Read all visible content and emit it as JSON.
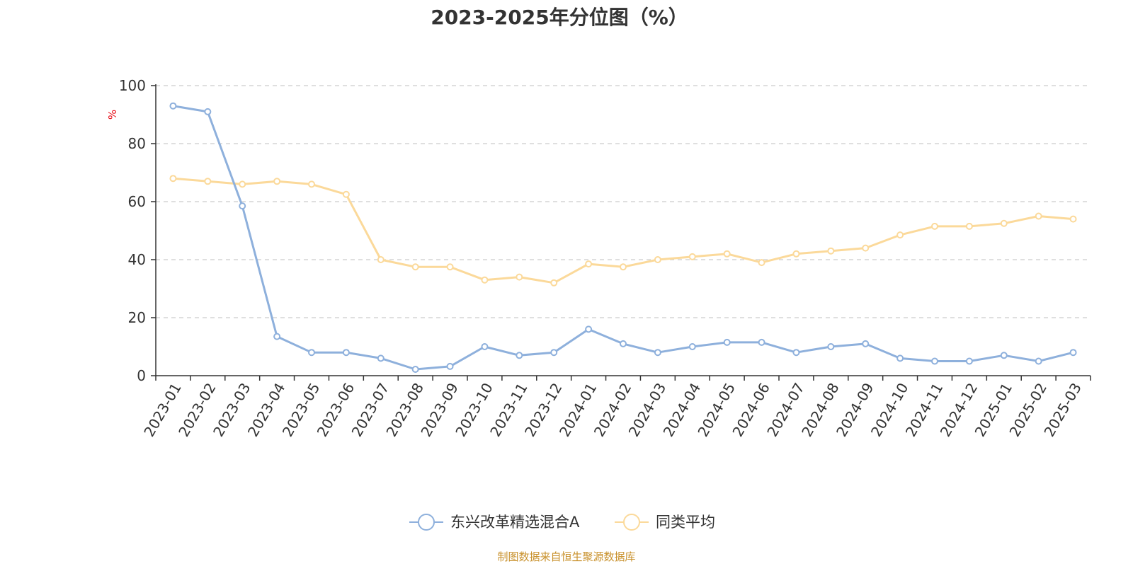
{
  "chart_data": {
    "type": "line",
    "title": "2023-2025年分位图（%）",
    "ylabel": "%",
    "xlabel": "",
    "ylim": [
      0,
      100
    ],
    "yticks": [
      "0",
      "20",
      "40",
      "60",
      "80",
      "100"
    ],
    "grid": true,
    "legend_position": "bottom",
    "categories": [
      "2023-01",
      "2023-02",
      "2023-03",
      "2023-04",
      "2023-05",
      "2023-06",
      "2023-07",
      "2023-08",
      "2023-09",
      "2023-10",
      "2023-11",
      "2023-12",
      "2024-01",
      "2024-02",
      "2024-03",
      "2024-04",
      "2024-05",
      "2024-06",
      "2024-07",
      "2024-08",
      "2024-09",
      "2024-10",
      "2024-11",
      "2024-12",
      "2025-01",
      "2025-02",
      "2025-03"
    ],
    "series": [
      {
        "name": "东兴改革精选混合A",
        "color": "#8eb0dc",
        "values": [
          93,
          91,
          58.5,
          13.5,
          8,
          8,
          6,
          2.2,
          3.2,
          10,
          7,
          8,
          16,
          11,
          8,
          10,
          11.5,
          11.5,
          8,
          10,
          11,
          6,
          5,
          5,
          7,
          5,
          8
        ]
      },
      {
        "name": "同类平均",
        "color": "#fbd99a",
        "values": [
          68,
          67,
          66,
          67,
          66,
          62.5,
          40,
          37.5,
          37.5,
          33,
          34,
          32,
          38.5,
          37.5,
          40,
          41,
          42,
          39,
          42,
          43,
          44,
          48.5,
          51.5,
          51.5,
          52.5,
          55,
          54
        ]
      }
    ]
  },
  "footer": {
    "source": "制图数据来自恒生聚源数据库"
  }
}
